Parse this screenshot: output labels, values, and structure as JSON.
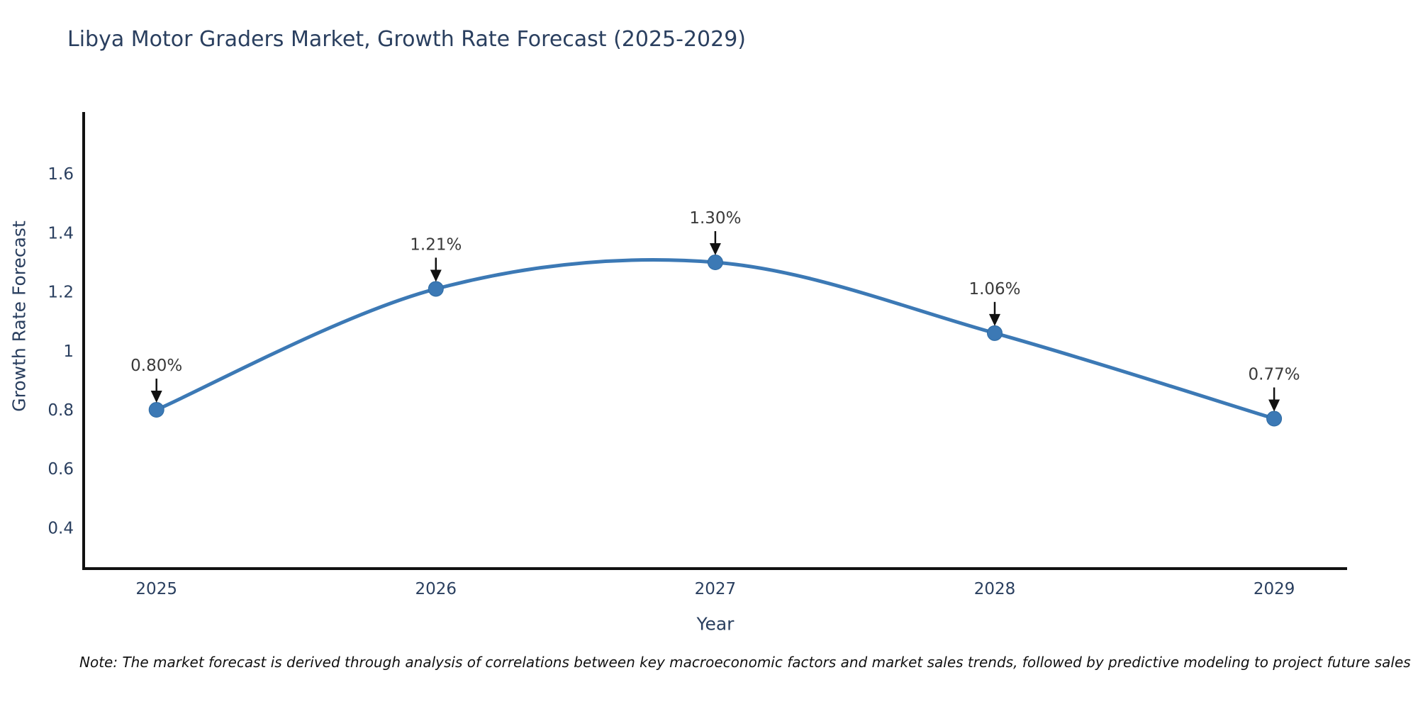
{
  "note": "Note: The market forecast is derived through analysis of correlations between key macroeconomic factors and market sales trends, followed by predictive modeling to project future sales",
  "colors": {
    "line": "#3c79b5",
    "marker": "#3c79b5",
    "marker_edge": "#2d6aa3",
    "axis_line": "#111111",
    "tick_label": "#2a3f5f",
    "annotation_text": "#3a3a3a",
    "annotation_arrow": "#111111",
    "background": "#ffffff"
  },
  "chart_data": {
    "type": "line",
    "title": "Libya Motor Graders Market, Growth Rate Forecast (2025-2029)",
    "xlabel": "Year",
    "ylabel": "Growth Rate Forecast",
    "x": [
      2025,
      2026,
      2027,
      2028,
      2029
    ],
    "y": [
      0.8,
      1.21,
      1.3,
      1.06,
      0.77
    ],
    "point_labels": [
      "0.80%",
      "1.21%",
      "1.30%",
      "1.06%",
      "0.77%"
    ],
    "x_tick_labels": [
      "2025",
      "2026",
      "2027",
      "2028",
      "2029"
    ],
    "y_tick_labels": [
      "0.4",
      "0.6",
      "0.8",
      "1",
      "1.2",
      "1.4",
      "1.6"
    ],
    "y_tick_values": [
      0.4,
      0.6,
      0.8,
      1.0,
      1.2,
      1.4,
      1.6
    ],
    "ylim": [
      0.26,
      1.81
    ],
    "line_shape": "spline",
    "grid": false,
    "legend": false,
    "markers": true
  }
}
